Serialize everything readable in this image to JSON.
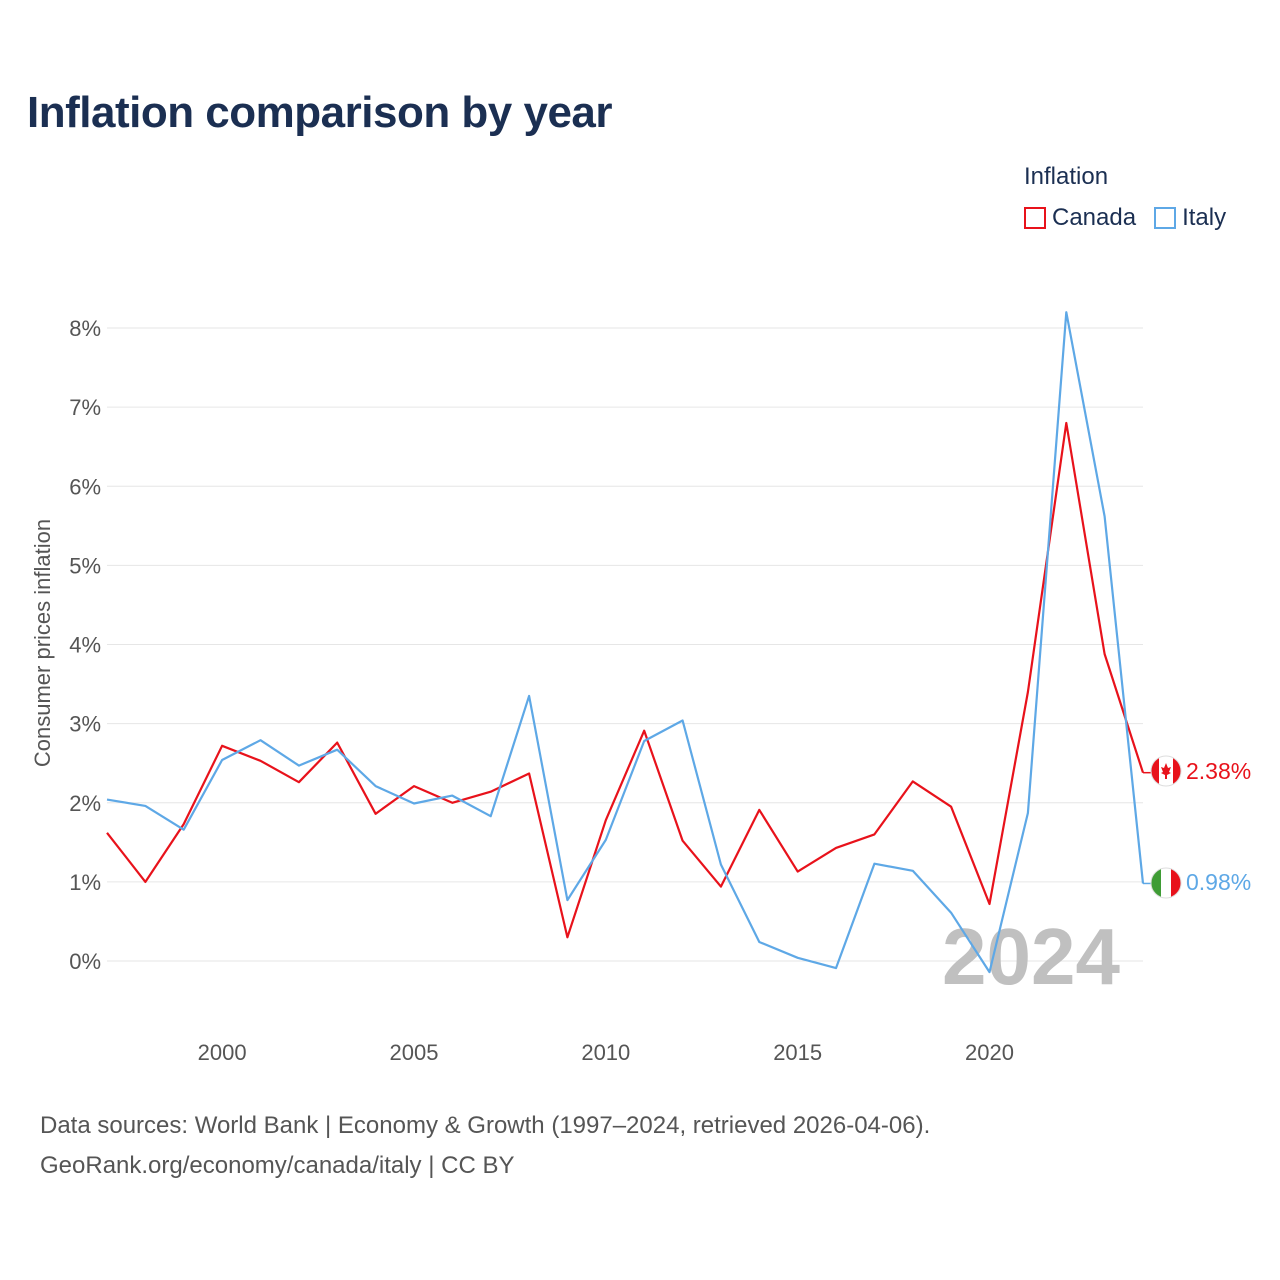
{
  "title": "Inflation comparison by year",
  "legend": {
    "title": "Inflation",
    "items": [
      {
        "name": "Canada",
        "color": "#e8121b"
      },
      {
        "name": "Italy",
        "color": "#5ea8e6"
      }
    ]
  },
  "year_watermark": "2024",
  "end_labels": {
    "canada": "2.38%",
    "italy": "0.98%"
  },
  "source": {
    "line1": "Data sources: World Bank | Economy & Growth (1997–2024, retrieved 2026-04-06).",
    "line2": "GeoRank.org/economy/canada/italy | CC BY"
  },
  "chart_data": {
    "type": "line",
    "title": "Inflation comparison by year",
    "xlabel": "",
    "ylabel": "Consumer prices inflation",
    "xlim": [
      1997,
      2024
    ],
    "ylim": [
      -0.5,
      8.5
    ],
    "xticks": [
      2000,
      2005,
      2010,
      2015,
      2020
    ],
    "yticks": [
      0,
      1,
      2,
      3,
      4,
      5,
      6,
      7,
      8
    ],
    "ytick_labels": [
      "0%",
      "1%",
      "2%",
      "3%",
      "4%",
      "5%",
      "6%",
      "7%",
      "8%"
    ],
    "grid": true,
    "x": [
      1997,
      1998,
      1999,
      2000,
      2001,
      2002,
      2003,
      2004,
      2005,
      2006,
      2007,
      2008,
      2009,
      2010,
      2011,
      2012,
      2013,
      2014,
      2015,
      2016,
      2017,
      2018,
      2019,
      2020,
      2021,
      2022,
      2023,
      2024
    ],
    "series": [
      {
        "name": "Canada",
        "color": "#e8121b",
        "values": [
          1.62,
          1.0,
          1.73,
          2.72,
          2.53,
          2.26,
          2.76,
          1.86,
          2.21,
          2.0,
          2.14,
          2.37,
          0.3,
          1.78,
          2.91,
          1.52,
          0.94,
          1.91,
          1.13,
          1.43,
          1.6,
          2.27,
          1.95,
          0.72,
          3.4,
          6.8,
          3.88,
          2.38
        ]
      },
      {
        "name": "Italy",
        "color": "#5ea8e6",
        "values": [
          2.04,
          1.96,
          1.66,
          2.54,
          2.79,
          2.47,
          2.67,
          2.21,
          1.99,
          2.09,
          1.83,
          3.35,
          0.77,
          1.53,
          2.78,
          3.04,
          1.22,
          0.24,
          0.04,
          -0.09,
          1.23,
          1.14,
          0.61,
          -0.14,
          1.87,
          8.2,
          5.62,
          0.98
        ]
      }
    ]
  }
}
